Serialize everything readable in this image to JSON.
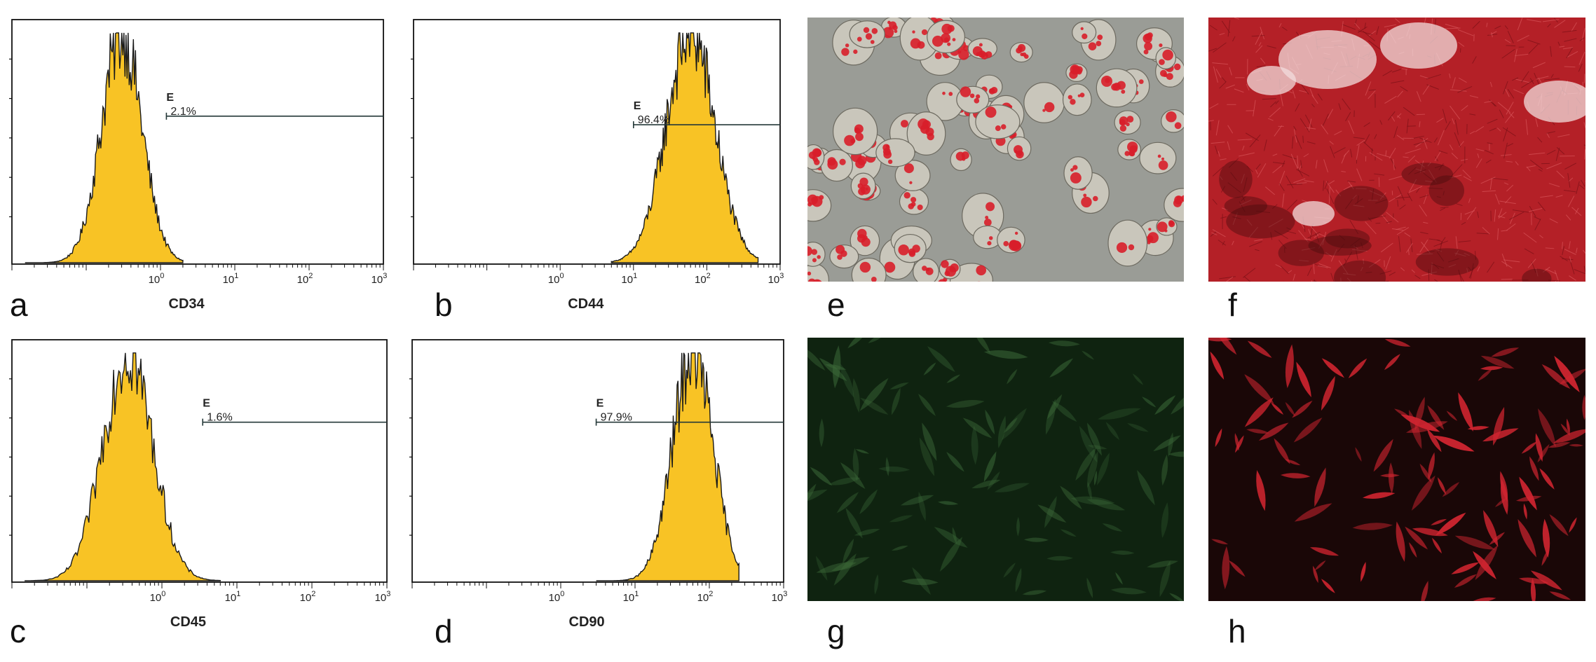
{
  "chart_data": [
    {
      "panel": "a",
      "type": "area",
      "xlabel": "CD34",
      "xscale": "log",
      "xlim": [
        0.01,
        1000
      ],
      "x_ticks": [
        "10^0",
        "10^1",
        "10^2",
        "10^3"
      ],
      "gate": {
        "label": "E",
        "percent": "2.1%",
        "start": 1.2
      },
      "histogram": {
        "mode": 0.3,
        "sigma_decades": 0.27,
        "min": 0.015,
        "max": 2.0
      }
    },
    {
      "panel": "b",
      "type": "area",
      "xlabel": "CD44",
      "xscale": "log",
      "xlim": [
        0.01,
        1000
      ],
      "x_ticks": [
        "10^0",
        "10^1",
        "10^2",
        "10^3"
      ],
      "gate": {
        "label": "E",
        "percent": "96.4%",
        "start": 10
      },
      "histogram": {
        "mode": 60,
        "sigma_decades": 0.33,
        "min": 5,
        "max": 500
      }
    },
    {
      "panel": "c",
      "type": "area",
      "xlabel": "CD45",
      "xscale": "log",
      "xlim": [
        0.01,
        1000
      ],
      "x_ticks": [
        "10^0",
        "10^1",
        "10^2",
        "10^3"
      ],
      "gate": {
        "label": "E",
        "percent": "1.6%",
        "start": 3.5
      },
      "histogram": {
        "mode": 0.35,
        "sigma_decades": 0.33,
        "min": 0.015,
        "max": 6.0
      }
    },
    {
      "panel": "d",
      "type": "area",
      "xlabel": "CD90",
      "xscale": "log",
      "xlim": [
        0.01,
        1000
      ],
      "x_ticks": [
        "10^0",
        "10^1",
        "10^2",
        "10^3"
      ],
      "gate": {
        "label": "E",
        "percent": "97.9%",
        "start": 3.0
      },
      "histogram": {
        "mode": 60,
        "sigma_decades": 0.27,
        "min": 3,
        "max": 250
      }
    }
  ],
  "micrographs": [
    {
      "panel": "e",
      "stain": "oil-red-adipocytes",
      "background": "#9a9c96",
      "accent": "#d81e2a"
    },
    {
      "panel": "f",
      "stain": "alizarin-red-mineralization",
      "background": "#b42027",
      "accent": "#f1dcdc"
    },
    {
      "panel": "g",
      "stain": "green-fluorescence",
      "background": "#0f2310",
      "accent": "#3d6b3a"
    },
    {
      "panel": "h",
      "stain": "red-fluorescence",
      "background": "#1a0707",
      "accent": "#d02530"
    }
  ],
  "panel_letters": [
    "a",
    "b",
    "c",
    "d",
    "e",
    "f",
    "g",
    "h"
  ],
  "colors": {
    "histogram_fill": "#f8c325",
    "histogram_outline": "#1a1a1a",
    "gate_line": "#243838"
  }
}
